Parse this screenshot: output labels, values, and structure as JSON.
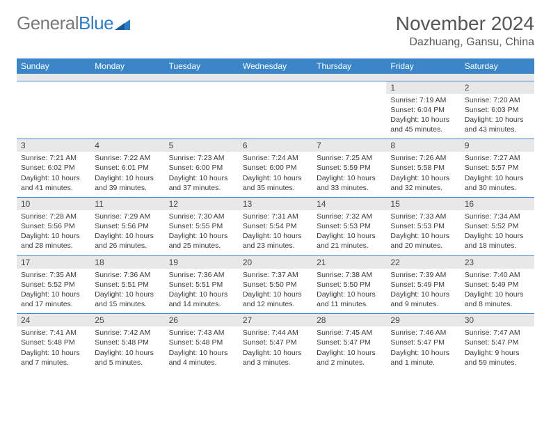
{
  "logo": {
    "word1": "General",
    "word2": "Blue"
  },
  "title": "November 2024",
  "location": "Dazhuang, Gansu, China",
  "colors": {
    "header_bg": "#3a86c8",
    "header_fg": "#ffffff",
    "row_border": "#3a86c8",
    "daynum_bg": "#e8e8e8",
    "body_text": "#3a3a3a",
    "logo_gray": "#7a7a7a",
    "logo_blue": "#2f7dc4"
  },
  "weekdays": [
    "Sunday",
    "Monday",
    "Tuesday",
    "Wednesday",
    "Thursday",
    "Friday",
    "Saturday"
  ],
  "weeks": [
    [
      {
        "empty": true
      },
      {
        "empty": true
      },
      {
        "empty": true
      },
      {
        "empty": true
      },
      {
        "empty": true
      },
      {
        "n": "1",
        "sr": "Sunrise: 7:19 AM",
        "ss": "Sunset: 6:04 PM",
        "dl": "Daylight: 10 hours and 45 minutes."
      },
      {
        "n": "2",
        "sr": "Sunrise: 7:20 AM",
        "ss": "Sunset: 6:03 PM",
        "dl": "Daylight: 10 hours and 43 minutes."
      }
    ],
    [
      {
        "n": "3",
        "sr": "Sunrise: 7:21 AM",
        "ss": "Sunset: 6:02 PM",
        "dl": "Daylight: 10 hours and 41 minutes."
      },
      {
        "n": "4",
        "sr": "Sunrise: 7:22 AM",
        "ss": "Sunset: 6:01 PM",
        "dl": "Daylight: 10 hours and 39 minutes."
      },
      {
        "n": "5",
        "sr": "Sunrise: 7:23 AM",
        "ss": "Sunset: 6:00 PM",
        "dl": "Daylight: 10 hours and 37 minutes."
      },
      {
        "n": "6",
        "sr": "Sunrise: 7:24 AM",
        "ss": "Sunset: 6:00 PM",
        "dl": "Daylight: 10 hours and 35 minutes."
      },
      {
        "n": "7",
        "sr": "Sunrise: 7:25 AM",
        "ss": "Sunset: 5:59 PM",
        "dl": "Daylight: 10 hours and 33 minutes."
      },
      {
        "n": "8",
        "sr": "Sunrise: 7:26 AM",
        "ss": "Sunset: 5:58 PM",
        "dl": "Daylight: 10 hours and 32 minutes."
      },
      {
        "n": "9",
        "sr": "Sunrise: 7:27 AM",
        "ss": "Sunset: 5:57 PM",
        "dl": "Daylight: 10 hours and 30 minutes."
      }
    ],
    [
      {
        "n": "10",
        "sr": "Sunrise: 7:28 AM",
        "ss": "Sunset: 5:56 PM",
        "dl": "Daylight: 10 hours and 28 minutes."
      },
      {
        "n": "11",
        "sr": "Sunrise: 7:29 AM",
        "ss": "Sunset: 5:56 PM",
        "dl": "Daylight: 10 hours and 26 minutes."
      },
      {
        "n": "12",
        "sr": "Sunrise: 7:30 AM",
        "ss": "Sunset: 5:55 PM",
        "dl": "Daylight: 10 hours and 25 minutes."
      },
      {
        "n": "13",
        "sr": "Sunrise: 7:31 AM",
        "ss": "Sunset: 5:54 PM",
        "dl": "Daylight: 10 hours and 23 minutes."
      },
      {
        "n": "14",
        "sr": "Sunrise: 7:32 AM",
        "ss": "Sunset: 5:53 PM",
        "dl": "Daylight: 10 hours and 21 minutes."
      },
      {
        "n": "15",
        "sr": "Sunrise: 7:33 AM",
        "ss": "Sunset: 5:53 PM",
        "dl": "Daylight: 10 hours and 20 minutes."
      },
      {
        "n": "16",
        "sr": "Sunrise: 7:34 AM",
        "ss": "Sunset: 5:52 PM",
        "dl": "Daylight: 10 hours and 18 minutes."
      }
    ],
    [
      {
        "n": "17",
        "sr": "Sunrise: 7:35 AM",
        "ss": "Sunset: 5:52 PM",
        "dl": "Daylight: 10 hours and 17 minutes."
      },
      {
        "n": "18",
        "sr": "Sunrise: 7:36 AM",
        "ss": "Sunset: 5:51 PM",
        "dl": "Daylight: 10 hours and 15 minutes."
      },
      {
        "n": "19",
        "sr": "Sunrise: 7:36 AM",
        "ss": "Sunset: 5:51 PM",
        "dl": "Daylight: 10 hours and 14 minutes."
      },
      {
        "n": "20",
        "sr": "Sunrise: 7:37 AM",
        "ss": "Sunset: 5:50 PM",
        "dl": "Daylight: 10 hours and 12 minutes."
      },
      {
        "n": "21",
        "sr": "Sunrise: 7:38 AM",
        "ss": "Sunset: 5:50 PM",
        "dl": "Daylight: 10 hours and 11 minutes."
      },
      {
        "n": "22",
        "sr": "Sunrise: 7:39 AM",
        "ss": "Sunset: 5:49 PM",
        "dl": "Daylight: 10 hours and 9 minutes."
      },
      {
        "n": "23",
        "sr": "Sunrise: 7:40 AM",
        "ss": "Sunset: 5:49 PM",
        "dl": "Daylight: 10 hours and 8 minutes."
      }
    ],
    [
      {
        "n": "24",
        "sr": "Sunrise: 7:41 AM",
        "ss": "Sunset: 5:48 PM",
        "dl": "Daylight: 10 hours and 7 minutes."
      },
      {
        "n": "25",
        "sr": "Sunrise: 7:42 AM",
        "ss": "Sunset: 5:48 PM",
        "dl": "Daylight: 10 hours and 5 minutes."
      },
      {
        "n": "26",
        "sr": "Sunrise: 7:43 AM",
        "ss": "Sunset: 5:48 PM",
        "dl": "Daylight: 10 hours and 4 minutes."
      },
      {
        "n": "27",
        "sr": "Sunrise: 7:44 AM",
        "ss": "Sunset: 5:47 PM",
        "dl": "Daylight: 10 hours and 3 minutes."
      },
      {
        "n": "28",
        "sr": "Sunrise: 7:45 AM",
        "ss": "Sunset: 5:47 PM",
        "dl": "Daylight: 10 hours and 2 minutes."
      },
      {
        "n": "29",
        "sr": "Sunrise: 7:46 AM",
        "ss": "Sunset: 5:47 PM",
        "dl": "Daylight: 10 hours and 1 minute."
      },
      {
        "n": "30",
        "sr": "Sunrise: 7:47 AM",
        "ss": "Sunset: 5:47 PM",
        "dl": "Daylight: 9 hours and 59 minutes."
      }
    ]
  ]
}
